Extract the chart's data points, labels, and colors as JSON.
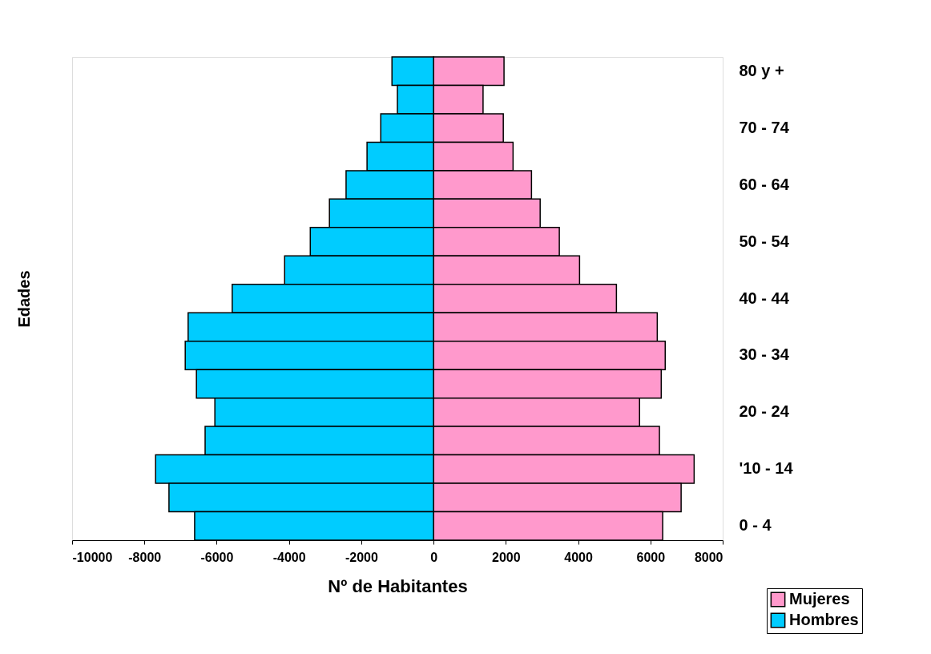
{
  "chart_data": {
    "type": "bar",
    "orientation": "horizontal",
    "stacked": true,
    "categories": [
      "80 y +",
      null,
      "70 - 74",
      null,
      "60 - 64",
      null,
      "50 - 54",
      null,
      "40 - 44",
      null,
      "30 - 34",
      null,
      "20 - 24",
      null,
      "'10 - 14",
      null,
      "0 - 4"
    ],
    "series": [
      {
        "name": "Mujeres",
        "color": "#ff99cc",
        "values": [
          1950,
          1370,
          1930,
          2200,
          2710,
          2950,
          3480,
          4040,
          5060,
          6190,
          6410,
          6300,
          5700,
          6250,
          7210,
          6850,
          6340
        ]
      },
      {
        "name": "Hombres",
        "color": "#00ccff",
        "values": [
          -1150,
          -1000,
          -1460,
          -1840,
          -2420,
          -2880,
          -3410,
          -4120,
          -5570,
          -6790,
          -6870,
          -6560,
          -6050,
          -6320,
          -7690,
          -7320,
          -6610
        ]
      }
    ],
    "xlim": [
      -10000,
      8000
    ],
    "xticks": [
      -10000,
      -8000,
      -6000,
      -4000,
      -2000,
      0,
      2000,
      4000,
      6000,
      8000
    ],
    "xlabel": "Nº de Habitantes",
    "ylabel": "Edades",
    "legend": "bottom right"
  }
}
